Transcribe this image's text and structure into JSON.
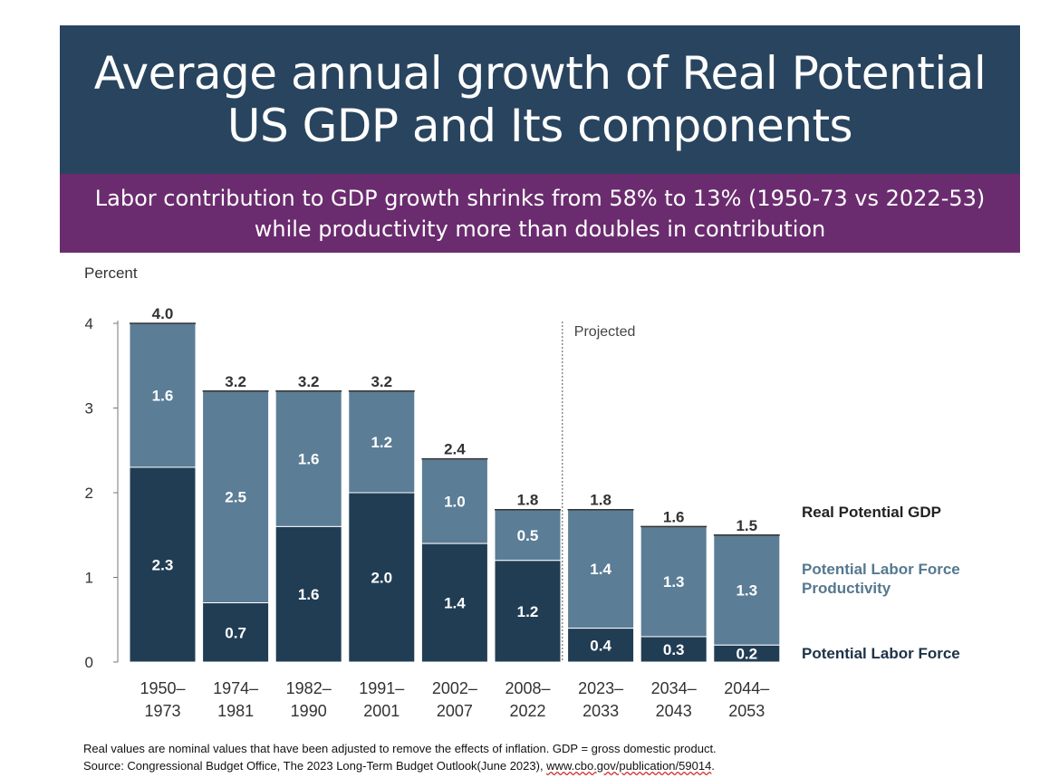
{
  "header": {
    "title": "Average annual growth of Real Potential US GDP and Its components",
    "subtitle": "Labor contribution to GDP growth shrinks from 58% to 13% (1950-73 vs 2022-53) while productivity more than doubles in contribution"
  },
  "colors": {
    "labor": "#213d54",
    "productivity": "#5b7d96",
    "gdp_label": "#222222",
    "productivity_label": "#55788f",
    "labor_label": "#1d3247"
  },
  "chart_data": {
    "type": "bar",
    "stacked": true,
    "ylabel": "Percent",
    "ylim": [
      0,
      4
    ],
    "yticks": [
      "0",
      "1",
      "2",
      "3",
      "4"
    ],
    "grid": false,
    "projected_label": "Projected",
    "categories": [
      [
        "1950–",
        "1973"
      ],
      [
        "1974–",
        "1981"
      ],
      [
        "1982–",
        "1990"
      ],
      [
        "1991–",
        "2001"
      ],
      [
        "2002–",
        "2007"
      ],
      [
        "2008–",
        "2022"
      ],
      [
        "2023–",
        "2033"
      ],
      [
        "2034–",
        "2043"
      ],
      [
        "2044–",
        "2053"
      ]
    ],
    "projected_start_index": 6,
    "totals": [
      4.0,
      3.2,
      3.2,
      3.2,
      2.4,
      1.8,
      1.8,
      1.6,
      1.5
    ],
    "total_labels": [
      "4.0",
      "3.2",
      "3.2",
      "3.2",
      "2.4",
      "1.8",
      "1.8",
      "1.6",
      "1.5"
    ],
    "series": [
      {
        "name": "Potential Labor Force",
        "values": [
          2.3,
          0.7,
          1.6,
          2.0,
          1.4,
          1.2,
          0.4,
          0.3,
          0.2
        ],
        "labels": [
          "2.3",
          "0.7",
          "1.6",
          "2.0",
          "1.4",
          "1.2",
          "0.4",
          "0.3",
          "0.2"
        ]
      },
      {
        "name": "Potential Labor Force Productivity",
        "values": [
          1.6,
          2.5,
          1.6,
          1.2,
          1.0,
          0.5,
          1.4,
          1.3,
          1.3
        ],
        "labels": [
          "1.6",
          "2.5",
          "1.6",
          "1.2",
          "1.0",
          "0.5",
          "1.4",
          "1.3",
          "1.3"
        ]
      }
    ],
    "legend": {
      "gdp": "Real Potential GDP",
      "productivity": [
        "Potential Labor Force",
        "Productivity"
      ],
      "labor": "Potential Labor Force"
    }
  },
  "footnote": {
    "line1": "Real values are nominal values that have been adjusted to remove the effects of inflation. GDP = gross domestic product.",
    "line2_prefix": "Source: Congressional Budget Office, The 2023 Long-Term Budget Outlook(June 2023), ",
    "line2_link": "www.cbo.gov/publication/59014",
    "line2_suffix": "."
  }
}
